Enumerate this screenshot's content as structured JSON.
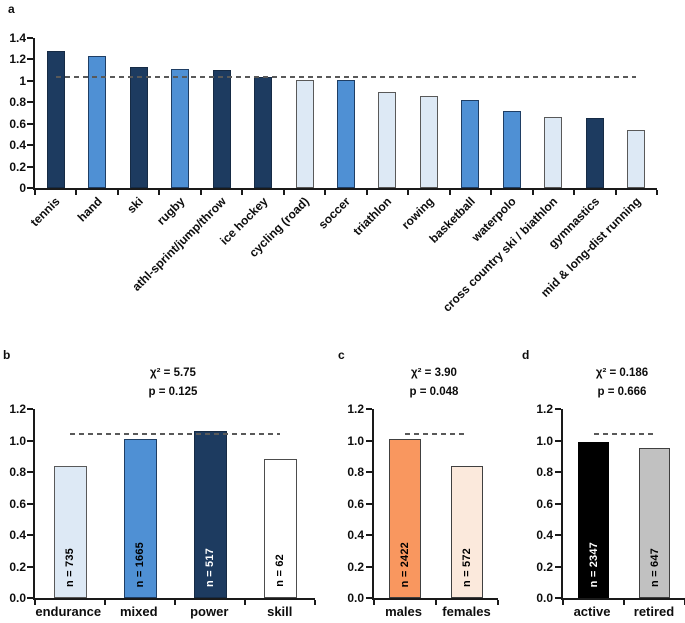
{
  "figure": {
    "background": "#ffffff",
    "axis_color": "#1a1a1a",
    "reference_line_color": "#595959"
  },
  "chart_data": [
    {
      "id": "a",
      "panel_label": "a",
      "type": "bar",
      "title": "",
      "xlabel": "",
      "ylabel": "",
      "ylim": [
        0,
        1.4
      ],
      "ytick_labels": [
        "1.4",
        "1.2",
        "1",
        "0.8",
        "0.6",
        "0.4",
        "0.2",
        "0"
      ],
      "ref_line": 1.04,
      "grid": false,
      "bars": [
        {
          "label": "tennis",
          "value": 1.28,
          "fill": "#1d3b60",
          "stroke": "#162b45"
        },
        {
          "label": "hand",
          "value": 1.23,
          "fill": "#4f90d4",
          "stroke": "#1f3e64"
        },
        {
          "label": "ski",
          "value": 1.13,
          "fill": "#1d3b60",
          "stroke": "#162b45"
        },
        {
          "label": "rugby",
          "value": 1.11,
          "fill": "#4f90d4",
          "stroke": "#1f3e64"
        },
        {
          "label": "athl-sprint/jump/throw",
          "value": 1.1,
          "fill": "#1d3b60",
          "stroke": "#162b45"
        },
        {
          "label": "ice hockey",
          "value": 1.04,
          "fill": "#1d3b60",
          "stroke": "#162b45"
        },
        {
          "label": "cycling (road)",
          "value": 1.01,
          "fill": "#dde9f5",
          "stroke": "#595959"
        },
        {
          "label": "soccer",
          "value": 1.01,
          "fill": "#4f90d4",
          "stroke": "#1f3e64"
        },
        {
          "label": "triathlon",
          "value": 0.9,
          "fill": "#dde9f5",
          "stroke": "#595959"
        },
        {
          "label": "rowing",
          "value": 0.86,
          "fill": "#dde9f5",
          "stroke": "#595959"
        },
        {
          "label": "basketball",
          "value": 0.82,
          "fill": "#4f90d4",
          "stroke": "#1f3e64"
        },
        {
          "label": "waterpolo",
          "value": 0.72,
          "fill": "#4f90d4",
          "stroke": "#1f3e64"
        },
        {
          "label": "cross country ski / biathlon",
          "value": 0.66,
          "fill": "#dde9f5",
          "stroke": "#595959"
        },
        {
          "label": "gymnastics",
          "value": 0.65,
          "fill": "#1d3b60",
          "stroke": "#162b45"
        },
        {
          "label": "mid & long-dist running",
          "value": 0.54,
          "fill": "#dde9f5",
          "stroke": "#595959"
        }
      ]
    },
    {
      "id": "b",
      "panel_label": "b",
      "type": "bar",
      "stats": {
        "chi": "χ² = 5.75",
        "p": "p = 0.125"
      },
      "ylim": [
        0,
        1.2
      ],
      "ytick_labels": [
        "1.2",
        "1.0",
        "0.8",
        "0.6",
        "0.4",
        "0.2",
        "0.0"
      ],
      "ref_line": 1.04,
      "grid": false,
      "bars": [
        {
          "label": "endurance",
          "value": 0.84,
          "count": "n = 735",
          "count_color": "#000000",
          "fill": "#dde9f5",
          "stroke": "#595959"
        },
        {
          "label": "mixed",
          "value": 1.01,
          "count": "n = 1665",
          "count_color": "#000000",
          "fill": "#4f90d4",
          "stroke": "#1f3e64"
        },
        {
          "label": "power",
          "value": 1.06,
          "count": "n = 517",
          "count_color": "#ffffff",
          "fill": "#1d3b60",
          "stroke": "#162b45"
        },
        {
          "label": "skill",
          "value": 0.88,
          "count": "n = 62",
          "count_color": "#000000",
          "fill": "#ffffff",
          "stroke": "#4d4d4d"
        }
      ]
    },
    {
      "id": "c",
      "panel_label": "c",
      "type": "bar",
      "stats": {
        "chi": "χ² = 3.90",
        "p": "p = 0.048"
      },
      "ylim": [
        0,
        1.2
      ],
      "ytick_labels": [
        "1.2",
        "1.0",
        "0.8",
        "0.6",
        "0.4",
        "0.2",
        "0.0"
      ],
      "ref_line": 1.04,
      "grid": false,
      "bars": [
        {
          "label": "males",
          "value": 1.01,
          "count": "n = 2422",
          "count_color": "#000000",
          "fill": "#f9975f",
          "stroke": "#404040"
        },
        {
          "label": "females",
          "value": 0.84,
          "count": "n = 572",
          "count_color": "#000000",
          "fill": "#fbe9dc",
          "stroke": "#404040"
        }
      ]
    },
    {
      "id": "d",
      "panel_label": "d",
      "type": "bar",
      "stats": {
        "chi": "χ² = 0.186",
        "p": "p = 0.666"
      },
      "ylim": [
        0,
        1.2
      ],
      "ytick_labels": [
        "1.2",
        "1.0",
        "0.8",
        "0.6",
        "0.4",
        "0.2",
        "0.0"
      ],
      "ref_line": 1.04,
      "grid": false,
      "bars": [
        {
          "label": "active",
          "value": 0.99,
          "count": "n = 2347",
          "count_color": "#ffffff",
          "fill": "#000000",
          "stroke": "#000000"
        },
        {
          "label": "retired",
          "value": 0.95,
          "count": "n = 647",
          "count_color": "#000000",
          "fill": "#c1c1c1",
          "stroke": "#404040"
        }
      ]
    }
  ]
}
